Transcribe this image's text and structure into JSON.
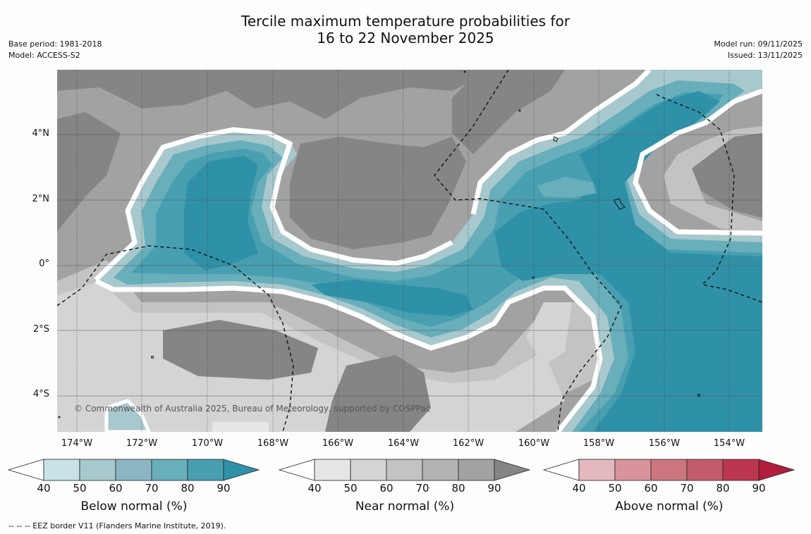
{
  "title": {
    "line1": "Tercile maximum temperature probabilities for",
    "line2": "16 to 22 November 2025"
  },
  "meta": {
    "base_period": "Base period: 1981-2018",
    "model": "Model: ACCESS-S2",
    "model_run": "Model run: 09/11/2025",
    "issued": "Issued: 13/11/2025"
  },
  "map": {
    "copyright": "© Commonwealth of Australia 2025, Bureau of Meteorology, supported by COSPPac",
    "lat_labels": [
      "4°N",
      "2°N",
      "0°",
      "2°S",
      "4°S"
    ],
    "lon_labels": [
      "174°W",
      "172°W",
      "170°W",
      "168°W",
      "166°W",
      "164°W",
      "162°W",
      "160°W",
      "158°W",
      "156°W",
      "154°W"
    ]
  },
  "legends": [
    {
      "title": "Below normal (%)",
      "ticks": [
        "40",
        "50",
        "60",
        "70",
        "80",
        "90"
      ],
      "colors": [
        "#ffffff",
        "#c9e2e8",
        "#a7c8cd",
        "#8bb5c3",
        "#68aebb",
        "#489fb0",
        "#2f91a8"
      ]
    },
    {
      "title": "Near normal (%)",
      "ticks": [
        "40",
        "50",
        "60",
        "70",
        "80",
        "90"
      ],
      "colors": [
        "#ffffff",
        "#e6e6e6",
        "#d4d4d4",
        "#c3c3c3",
        "#b3b3b3",
        "#a2a2a2",
        "#858585"
      ]
    },
    {
      "title": "Above normal (%)",
      "ticks": [
        "40",
        "50",
        "60",
        "70",
        "80",
        "90"
      ],
      "colors": [
        "#ffffff",
        "#e3b8be",
        "#d9939c",
        "#cc7680",
        "#c35c6a",
        "#bb3750",
        "#b21d3b"
      ]
    }
  ],
  "footer": "-- -- -- EEZ border V11 (Flanders Marine Institute, 2019)."
}
